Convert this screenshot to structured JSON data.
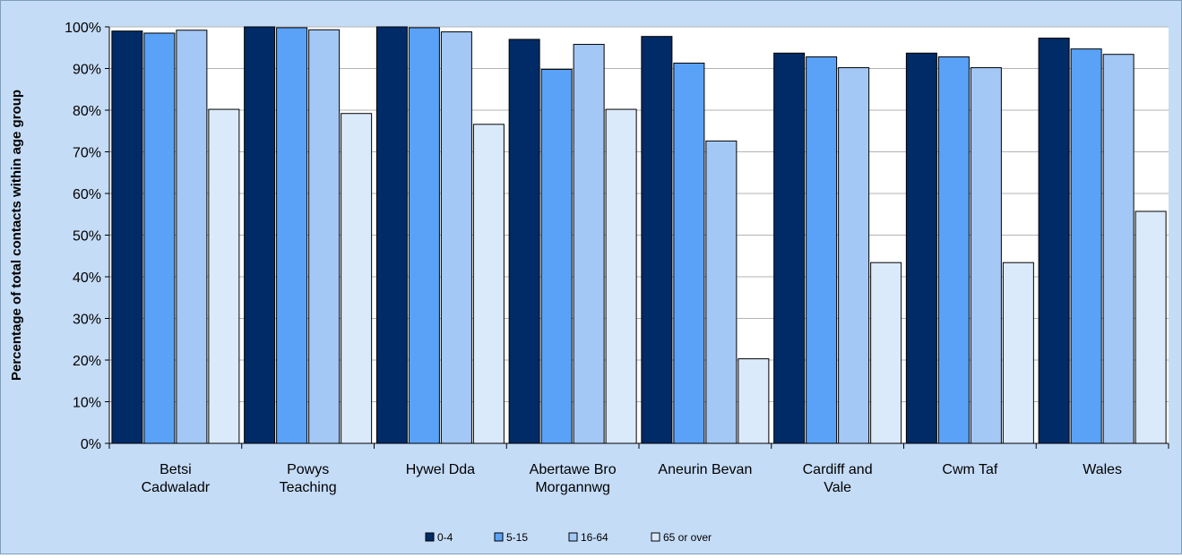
{
  "chart_data": {
    "type": "bar",
    "title": "",
    "xlabel": "",
    "ylabel": "Percentage  of  total contacts  within  age group",
    "ylim": [
      0,
      100
    ],
    "yticks": [
      "0%",
      "10%",
      "20%",
      "30%",
      "40%",
      "50%",
      "60%",
      "70%",
      "80%",
      "90%",
      "100%"
    ],
    "grid": true,
    "legend_position": "bottom",
    "categories": [
      [
        "Betsi",
        "Cadwaladr"
      ],
      [
        "Powys",
        "Teaching"
      ],
      [
        "Hywel Dda"
      ],
      [
        "Abertawe Bro",
        "Morgannwg"
      ],
      [
        "Aneurin Bevan"
      ],
      [
        "Cardiff and",
        "Vale"
      ],
      [
        "Cwm Taf"
      ],
      [
        "Wales"
      ]
    ],
    "series": [
      {
        "name": "0-4",
        "color": "#002b66",
        "values": [
          99,
          100,
          100,
          97,
          97.7,
          93.7,
          93.7,
          97.3
        ]
      },
      {
        "name": "5-15",
        "color": "#5aa2f7",
        "values": [
          98.5,
          99.8,
          99.8,
          89.8,
          91.3,
          92.8,
          92.8,
          94.7
        ]
      },
      {
        "name": "16-64",
        "color": "#a4c8f5",
        "values": [
          99.2,
          99.3,
          98.8,
          95.8,
          72.6,
          90.2,
          90.2,
          93.4
        ]
      },
      {
        "name": "65 or over",
        "color": "#dbeafb",
        "values": [
          80.2,
          79.2,
          76.6,
          80.2,
          20.3,
          43.4,
          43.4,
          55.7
        ]
      }
    ]
  }
}
